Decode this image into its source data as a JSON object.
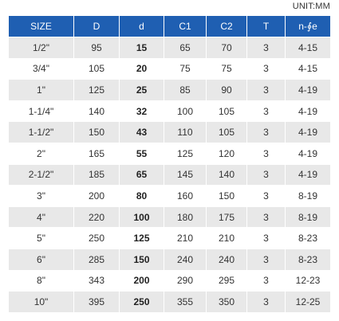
{
  "unit_label": "UNIT:MM",
  "headers": [
    "SIZE",
    "D",
    "d",
    "C1",
    "C2",
    "T",
    "n-∮e"
  ],
  "rows": [
    [
      "1/2\"",
      "95",
      "15",
      "65",
      "70",
      "3",
      "4-15"
    ],
    [
      "3/4\"",
      "105",
      "20",
      "75",
      "75",
      "3",
      "4-15"
    ],
    [
      "1\"",
      "125",
      "25",
      "85",
      "90",
      "3",
      "4-19"
    ],
    [
      "1-1/4\"",
      "140",
      "32",
      "100",
      "105",
      "3",
      "4-19"
    ],
    [
      "1-1/2\"",
      "150",
      "43",
      "110",
      "105",
      "3",
      "4-19"
    ],
    [
      "2\"",
      "165",
      "55",
      "125",
      "120",
      "3",
      "4-19"
    ],
    [
      "2-1/2\"",
      "185",
      "65",
      "145",
      "140",
      "3",
      "4-19"
    ],
    [
      "3\"",
      "200",
      "80",
      "160",
      "150",
      "3",
      "8-19"
    ],
    [
      "4\"",
      "220",
      "100",
      "180",
      "175",
      "3",
      "8-19"
    ],
    [
      "5\"",
      "250",
      "125",
      "210",
      "210",
      "3",
      "8-23"
    ],
    [
      "6\"",
      "285",
      "150",
      "240",
      "240",
      "3",
      "8-23"
    ],
    [
      "8\"",
      "343",
      "200",
      "290",
      "295",
      "3",
      "12-23"
    ],
    [
      "10\"",
      "395",
      "250",
      "355",
      "350",
      "3",
      "12-25"
    ]
  ]
}
